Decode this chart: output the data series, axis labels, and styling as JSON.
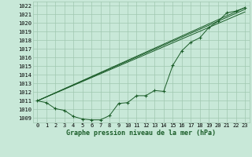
{
  "bg_color": "#c8e8d8",
  "grid_color": "#a0c8b0",
  "line_color": "#1a5c28",
  "xlabel": "Graphe pression niveau de la mer (hPa)",
  "xlim": [
    -0.5,
    23.5
  ],
  "ylim": [
    1008.5,
    1022.5
  ],
  "yticks": [
    1009,
    1010,
    1011,
    1012,
    1013,
    1014,
    1015,
    1016,
    1017,
    1018,
    1019,
    1020,
    1021,
    1022
  ],
  "xticks": [
    0,
    1,
    2,
    3,
    4,
    5,
    6,
    7,
    8,
    9,
    10,
    11,
    12,
    13,
    14,
    15,
    16,
    17,
    18,
    19,
    20,
    21,
    22,
    23
  ],
  "line1_x": [
    0,
    1,
    2,
    3,
    4,
    5,
    6,
    7,
    8,
    9,
    10,
    11,
    12,
    13,
    14,
    15,
    16,
    17,
    18,
    19,
    20,
    21,
    22,
    23
  ],
  "line1_y": [
    1011.0,
    1010.8,
    1010.1,
    1009.9,
    1009.2,
    1008.9,
    1008.8,
    1008.8,
    1009.3,
    1010.7,
    1010.8,
    1011.6,
    1011.6,
    1012.2,
    1012.1,
    1015.1,
    1016.8,
    1017.8,
    1018.3,
    1019.5,
    1020.2,
    1021.2,
    1021.4,
    1021.8
  ],
  "line2_x": [
    0,
    23
  ],
  "line2_y": [
    1011.0,
    1021.8
  ],
  "line3_x": [
    0,
    23
  ],
  "line3_y": [
    1011.0,
    1021.3
  ],
  "line4_x": [
    0,
    23
  ],
  "line4_y": [
    1011.0,
    1021.6
  ]
}
